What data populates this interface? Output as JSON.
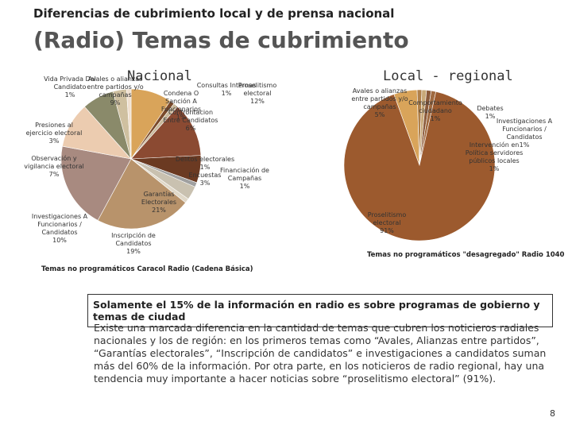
{
  "header": {
    "subtitle": "Diferencias de cubrimiento local y de prensa nacional",
    "title": "(Radio) Temas de cubrimiento"
  },
  "chart_data": [
    {
      "type": "pie",
      "title": "Nacional",
      "caption": "Temas no programáticos Caracol Radio (Cadena Básica)",
      "categories": [
        "Avales o alianzas entre partidos y/o campañas",
        "Condena O Sanción A Funcionarios",
        "Consultas Internas",
        "Proselitismo electoral",
        "Confrontacion Entre Candidatos",
        "Delitos electorales",
        "Encuestas",
        "Financiación de Campañas",
        "Garantías Electorales",
        "Inscripción de Candidatos",
        "Investigaciones A Funcionarios / Candidatos",
        "Observación y vigilancia electoral",
        "Presiones al ejercicio electoral",
        "Vida Privada Del Candidato"
      ],
      "values": [
        9,
        1,
        1,
        12,
        6,
        1,
        3,
        1,
        21,
        19,
        10,
        7,
        3,
        1
      ],
      "value_labels": [
        "9%",
        "1%",
        "1%",
        "12%",
        "6%",
        "1%",
        "3%",
        "1%",
        "21%",
        "19%",
        "10%",
        "7%",
        "3%",
        "1%"
      ],
      "colors": [
        "#d9a45a",
        "#7a4a2a",
        "#c8b89a",
        "#8b4a32",
        "#6b3a22",
        "#a0a0a0",
        "#c9c1b0",
        "#e0d8c8",
        "#b8936b",
        "#a88a80",
        "#ecccb0",
        "#8a8a6a",
        "#cfc0a0",
        "#f0e0d0"
      ]
    },
    {
      "type": "pie",
      "title": "Local - regional",
      "caption": "Temas no programáticos \"desagregado\" Radio 1040",
      "categories": [
        "Avales o alianzas entre partidos y/o campañas",
        "Comportamiento ciudadano",
        "Debates",
        "Investigaciones A Funcionarios / Candidatos",
        "Intervención en Política servidores públicos locales",
        "Proselitismo electoral"
      ],
      "values": [
        5,
        1,
        1,
        1,
        1,
        91
      ],
      "value_labels": [
        "5%",
        "1%",
        "1%",
        "1%",
        "1%",
        "91%"
      ],
      "colors": [
        "#d9a45a",
        "#b0804a",
        "#c8a878",
        "#8b5a3a",
        "#a06a40",
        "#9c5a2e"
      ]
    }
  ],
  "highlight": "Solamente el 15% de la información en radio es sobre programas de gobierno y temas de ciudad",
  "paragraph": "Existe una marcada diferencia en la cantidad de temas que cubren los noticieros radiales nacionales y los de región: en los primeros temas como “Avales, Alianzas entre partidos”, “Garantías electorales”, “Inscripción de candidatos” e investigaciones a candidatos suman más del 60% de la información. Por otra parte, en los noticieros de radio regional, hay una tendencia muy importante a hacer noticias sobre “proselitismo electoral” (91%).",
  "page_number": 8
}
